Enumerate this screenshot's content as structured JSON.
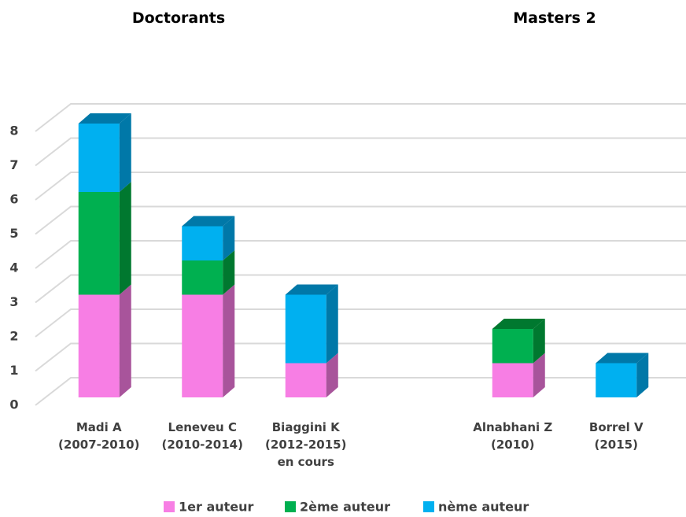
{
  "chart_data": {
    "type": "bar3d_stacked",
    "group_labels": [
      "Doctorants",
      "Masters 2"
    ],
    "categories": [
      "Madi A\n(2007-2010)",
      "Leneveu C\n(2010-2014)",
      "Biaggini K\n(2012-2015)\nen cours",
      null,
      "Alnabhani Z\n(2010)",
      "Borrel V\n(2015)"
    ],
    "series": [
      {
        "name": "1er auteur",
        "color": "#f77ee4",
        "side": "#a8549b",
        "values": [
          3,
          3,
          1,
          null,
          1,
          0
        ]
      },
      {
        "name": "2ème auteur",
        "color": "#00b050",
        "side": "#00782f",
        "values": [
          3,
          1,
          0,
          null,
          1,
          0
        ]
      },
      {
        "name": "nème auteur",
        "color": "#00b0f0",
        "side": "#0078a8",
        "values": [
          2,
          1,
          2,
          null,
          0,
          1
        ]
      }
    ],
    "ylim": [
      0,
      8
    ],
    "yticks": [
      0,
      1,
      2,
      3,
      4,
      5,
      6,
      7,
      8
    ],
    "grid": true
  }
}
